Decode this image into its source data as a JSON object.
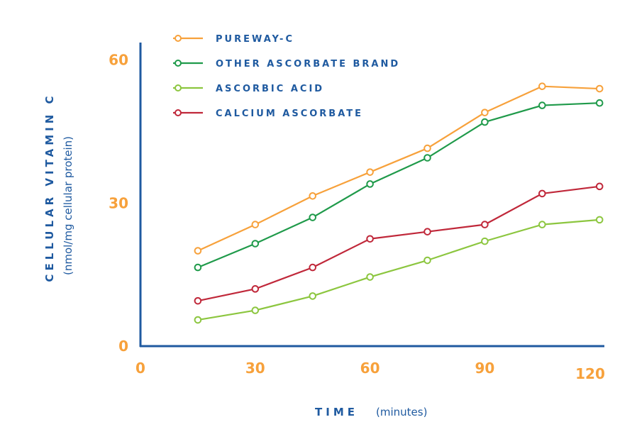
{
  "chart_data": {
    "type": "line",
    "title": "",
    "xlabel": "TIME",
    "xlabel_unit": "(minutes)",
    "ylabel": "CELLULAR VITAMIN C",
    "ylabel_unit": "(nmol/mg cellular protein)",
    "xlim": [
      0,
      122
    ],
    "ylim": [
      0,
      61
    ],
    "x_ticks": [
      0,
      30,
      60,
      90,
      120
    ],
    "x_tick_labels": [
      "0",
      "30",
      "60",
      "90",
      "120"
    ],
    "y_ticks": [
      0,
      30,
      60
    ],
    "y_tick_labels": [
      "0",
      "30",
      "60"
    ],
    "x": [
      15,
      30,
      45,
      60,
      75,
      90,
      105,
      120
    ],
    "grid": false,
    "legend_position": "top",
    "series": [
      {
        "name": "PUREWAY-C",
        "color": "#f7a13b",
        "values": [
          20,
          25.5,
          31.5,
          36.5,
          41.5,
          49,
          54.5,
          54
        ]
      },
      {
        "name": "OTHER ASCORBATE BRAND",
        "color": "#1f9a4a",
        "values": [
          16.5,
          21.5,
          27,
          34,
          39.5,
          47,
          50.5,
          51
        ]
      },
      {
        "name": "ASCORBIC ACID",
        "color": "#8cc63f",
        "values": [
          5.5,
          7.5,
          10.5,
          14.5,
          18,
          22,
          25.5,
          26.5
        ]
      },
      {
        "name": "CALCIUM ASCORBATE",
        "color": "#c0283a",
        "values": [
          9.5,
          12,
          16.5,
          22.5,
          24,
          25.5,
          32,
          33.5
        ]
      }
    ],
    "axis_color": "#1f5aa0",
    "tick_color": "#f7a13b"
  }
}
